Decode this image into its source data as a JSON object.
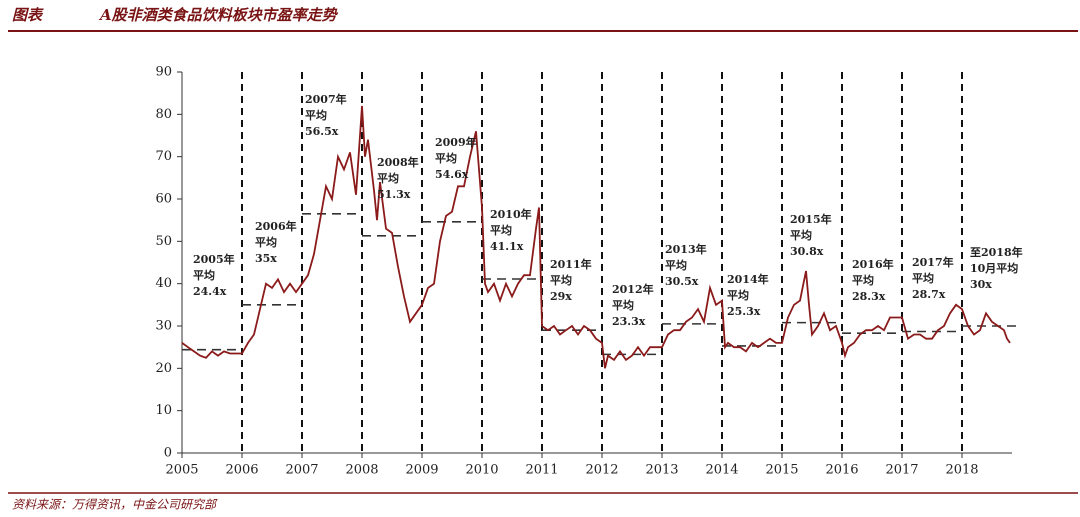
{
  "header": {
    "label": "图表",
    "title": "A股非酒类食品饮料板块市盈率走势"
  },
  "source": "资料来源：万得资讯，中金公司研究部",
  "chart_data": {
    "type": "line",
    "x": [
      2005.0,
      2005.1,
      2005.2,
      2005.3,
      2005.4,
      2005.5,
      2005.6,
      2005.7,
      2005.8,
      2005.9,
      2006.0,
      2006.1,
      2006.2,
      2006.3,
      2006.4,
      2006.5,
      2006.6,
      2006.7,
      2006.8,
      2006.9,
      2007.0,
      2007.1,
      2007.2,
      2007.3,
      2007.4,
      2007.5,
      2007.6,
      2007.7,
      2007.8,
      2007.9,
      2008.0,
      2008.05,
      2008.1,
      2008.2,
      2008.25,
      2008.3,
      2008.4,
      2008.5,
      2008.6,
      2008.7,
      2008.8,
      2008.9,
      2009.0,
      2009.1,
      2009.2,
      2009.3,
      2009.4,
      2009.5,
      2009.6,
      2009.7,
      2009.8,
      2009.9,
      2010.0,
      2010.05,
      2010.1,
      2010.2,
      2010.3,
      2010.4,
      2010.5,
      2010.6,
      2010.7,
      2010.8,
      2010.9,
      2010.95,
      2011.0,
      2011.1,
      2011.2,
      2011.3,
      2011.4,
      2011.5,
      2011.6,
      2011.7,
      2011.8,
      2011.9,
      2012.0,
      2012.05,
      2012.1,
      2012.2,
      2012.3,
      2012.4,
      2012.5,
      2012.6,
      2012.7,
      2012.8,
      2012.9,
      2013.0,
      2013.1,
      2013.2,
      2013.3,
      2013.4,
      2013.5,
      2013.6,
      2013.7,
      2013.8,
      2013.9,
      2014.0,
      2014.05,
      2014.1,
      2014.2,
      2014.3,
      2014.4,
      2014.5,
      2014.6,
      2014.7,
      2014.8,
      2014.9,
      2015.0,
      2015.1,
      2015.2,
      2015.3,
      2015.4,
      2015.45,
      2015.5,
      2015.6,
      2015.7,
      2015.8,
      2015.9,
      2016.0,
      2016.05,
      2016.1,
      2016.2,
      2016.3,
      2016.4,
      2016.5,
      2016.6,
      2016.7,
      2016.8,
      2016.9,
      2017.0,
      2017.1,
      2017.2,
      2017.3,
      2017.4,
      2017.5,
      2017.6,
      2017.7,
      2017.8,
      2017.9,
      2018.0,
      2018.1,
      2018.2,
      2018.3,
      2018.4,
      2018.5,
      2018.6,
      2018.7,
      2018.75,
      2018.8
    ],
    "series": [
      {
        "color": "#8b1a1a",
        "values": [
          26,
          25,
          24,
          23,
          22.5,
          24,
          23,
          24,
          23.5,
          23.5,
          23.5,
          26,
          28,
          34,
          40,
          39,
          41,
          38,
          40,
          38,
          40,
          42,
          47,
          55,
          63,
          60,
          70,
          67,
          71,
          61,
          82,
          70,
          74,
          62,
          55,
          64,
          53,
          52,
          44,
          37,
          31,
          33,
          35,
          39,
          40,
          50,
          56,
          57,
          63,
          63,
          70,
          76,
          58,
          40,
          38,
          40,
          36,
          40,
          37,
          40,
          42,
          42,
          53,
          58,
          30,
          29,
          30,
          28,
          29,
          30,
          28,
          30,
          29,
          27,
          26,
          20,
          23,
          22,
          24,
          22,
          23,
          25,
          23,
          25,
          25,
          25,
          28,
          29,
          29,
          31,
          32,
          34,
          31,
          39,
          35,
          36,
          25,
          26,
          25,
          25,
          24,
          26,
          25,
          26,
          27,
          26,
          26,
          32,
          35,
          36,
          43,
          35,
          28,
          30,
          33,
          29,
          30,
          26,
          23,
          25,
          26,
          28,
          29,
          29,
          30,
          29,
          32,
          32,
          32,
          27,
          28,
          28,
          27,
          27,
          29,
          30,
          33,
          35,
          34,
          30,
          28,
          29,
          33,
          31,
          30,
          29,
          27,
          26
        ]
      }
    ],
    "averages": [
      {
        "period": [
          2005,
          2006
        ],
        "value": 24.4,
        "label_lines": [
          "2005年",
          "平均"
        ],
        "value_label": "24.4x"
      },
      {
        "period": [
          2006,
          2007
        ],
        "value": 35,
        "label_lines": [
          "2006年",
          "平均"
        ],
        "value_label": "35x"
      },
      {
        "period": [
          2007,
          2008
        ],
        "value": 56.5,
        "label_lines": [
          "2007年",
          "平均"
        ],
        "value_label": "56.5x"
      },
      {
        "period": [
          2008,
          2009
        ],
        "value": 51.3,
        "label_lines": [
          "2008年",
          "平均"
        ],
        "value_label": "51.3x"
      },
      {
        "period": [
          2009,
          2010
        ],
        "value": 54.6,
        "label_lines": [
          "2009年",
          "平均"
        ],
        "value_label": "54.6x"
      },
      {
        "period": [
          2010,
          2011
        ],
        "value": 41.1,
        "label_lines": [
          "2010年",
          "平均"
        ],
        "value_label": "41.1x"
      },
      {
        "period": [
          2011,
          2012
        ],
        "value": 29,
        "label_lines": [
          "2011年",
          "平均"
        ],
        "value_label": "29x"
      },
      {
        "period": [
          2012,
          2013
        ],
        "value": 23.3,
        "label_lines": [
          "2012年",
          "平均"
        ],
        "value_label": "23.3x"
      },
      {
        "period": [
          2013,
          2014
        ],
        "value": 30.5,
        "label_lines": [
          "2013年",
          "平均"
        ],
        "value_label": "30.5x"
      },
      {
        "period": [
          2014,
          2015
        ],
        "value": 25.3,
        "label_lines": [
          "2014年",
          "平均"
        ],
        "value_label": "25.3x"
      },
      {
        "period": [
          2015,
          2016
        ],
        "value": 30.8,
        "label_lines": [
          "2015年",
          "平均"
        ],
        "value_label": "30.8x"
      },
      {
        "period": [
          2016,
          2017
        ],
        "value": 28.3,
        "label_lines": [
          "2016年",
          "平均"
        ],
        "value_label": "28.3x"
      },
      {
        "period": [
          2017,
          2018
        ],
        "value": 28.7,
        "label_lines": [
          "2017年",
          "平均"
        ],
        "value_label": "28.7x"
      },
      {
        "period": [
          2018,
          2019
        ],
        "value": 30,
        "label_lines": [
          "至2018年",
          "10月平均"
        ],
        "value_label": "30x"
      }
    ],
    "xlim": [
      2005,
      2019
    ],
    "xticks": [
      2005,
      2006,
      2007,
      2008,
      2009,
      2010,
      2011,
      2012,
      2013,
      2014,
      2015,
      2016,
      2017,
      2018
    ],
    "ylim": [
      0,
      90
    ],
    "yticks": [
      0,
      10,
      20,
      30,
      40,
      50,
      60,
      70,
      80,
      90
    ]
  }
}
